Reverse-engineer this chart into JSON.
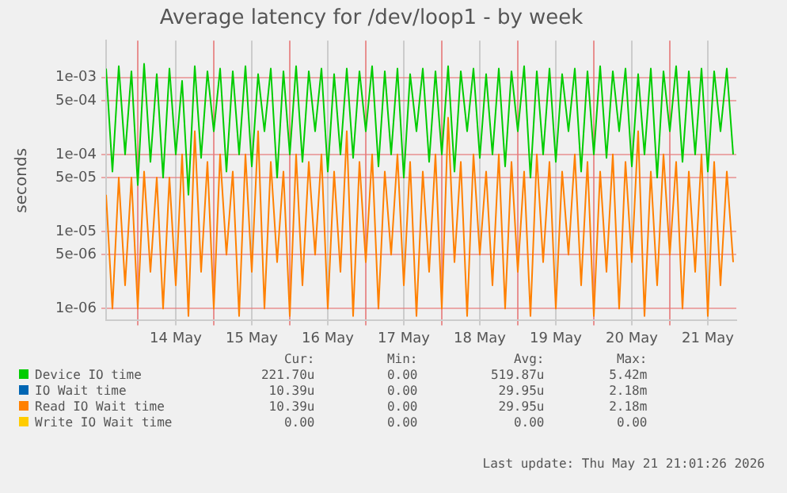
{
  "chart_data": {
    "type": "line",
    "title": "Average latency for /dev/loop1 - by week",
    "ylabel": "seconds",
    "log": "y",
    "grid": true,
    "legend": "bottom",
    "marker": "none",
    "line_style": "solid",
    "xlim": [
      "2026-05-13T14:00",
      "2026-05-21T21:00"
    ],
    "xticks": [
      {
        "value": "2026-05-14T00:00",
        "label": null
      },
      {
        "value": "2026-05-14T12:00",
        "label": "14 May"
      },
      {
        "value": "2026-05-15T00:00",
        "label": null
      },
      {
        "value": "2026-05-15T12:00",
        "label": "15 May"
      },
      {
        "value": "2026-05-16T00:00",
        "label": null
      },
      {
        "value": "2026-05-16T12:00",
        "label": "16 May"
      },
      {
        "value": "2026-05-17T00:00",
        "label": null
      },
      {
        "value": "2026-05-17T12:00",
        "label": "17 May"
      },
      {
        "value": "2026-05-18T00:00",
        "label": null
      },
      {
        "value": "2026-05-18T12:00",
        "label": "18 May"
      },
      {
        "value": "2026-05-19T00:00",
        "label": null
      },
      {
        "value": "2026-05-19T12:00",
        "label": "19 May"
      },
      {
        "value": "2026-05-20T00:00",
        "label": null
      },
      {
        "value": "2026-05-20T12:00",
        "label": "20 May"
      },
      {
        "value": "2026-05-21T00:00",
        "label": null
      },
      {
        "value": "2026-05-21T12:00",
        "label": "21 May"
      }
    ],
    "ylim": [
      7e-07,
      0.003
    ],
    "yticks": [
      {
        "value": 1e-06,
        "label": "1e-06"
      },
      {
        "value": 5e-06,
        "label": "5e-06"
      },
      {
        "value": 1e-05,
        "label": "1e-05"
      },
      {
        "value": 5e-05,
        "label": "5e-05"
      },
      {
        "value": 0.0001,
        "label": "1e-04"
      },
      {
        "value": 0.0005,
        "label": "5e-04"
      },
      {
        "value": 0.001,
        "label": "1e-03"
      }
    ],
    "x": [
      "2026-05-13T14:00",
      "2026-05-13T16:00",
      "2026-05-13T18:00",
      "2026-05-13T20:00",
      "2026-05-13T22:00",
      "2026-05-14T00:00",
      "2026-05-14T02:00",
      "2026-05-14T04:00",
      "2026-05-14T06:00",
      "2026-05-14T08:00",
      "2026-05-14T10:00",
      "2026-05-14T12:00",
      "2026-05-14T14:00",
      "2026-05-14T16:00",
      "2026-05-14T18:00",
      "2026-05-14T20:00",
      "2026-05-14T22:00",
      "2026-05-15T00:00",
      "2026-05-15T02:00",
      "2026-05-15T04:00",
      "2026-05-15T06:00",
      "2026-05-15T08:00",
      "2026-05-15T10:00",
      "2026-05-15T12:00",
      "2026-05-15T14:00",
      "2026-05-15T16:00",
      "2026-05-15T18:00",
      "2026-05-15T20:00",
      "2026-05-15T22:00",
      "2026-05-16T00:00",
      "2026-05-16T02:00",
      "2026-05-16T04:00",
      "2026-05-16T06:00",
      "2026-05-16T08:00",
      "2026-05-16T10:00",
      "2026-05-16T12:00",
      "2026-05-16T14:00",
      "2026-05-16T16:00",
      "2026-05-16T18:00",
      "2026-05-16T20:00",
      "2026-05-16T22:00",
      "2026-05-17T00:00",
      "2026-05-17T02:00",
      "2026-05-17T04:00",
      "2026-05-17T06:00",
      "2026-05-17T08:00",
      "2026-05-17T10:00",
      "2026-05-17T12:00",
      "2026-05-17T14:00",
      "2026-05-17T16:00",
      "2026-05-17T18:00",
      "2026-05-17T20:00",
      "2026-05-17T22:00",
      "2026-05-18T00:00",
      "2026-05-18T02:00",
      "2026-05-18T04:00",
      "2026-05-18T06:00",
      "2026-05-18T08:00",
      "2026-05-18T10:00",
      "2026-05-18T12:00",
      "2026-05-18T14:00",
      "2026-05-18T16:00",
      "2026-05-18T18:00",
      "2026-05-18T20:00",
      "2026-05-18T22:00",
      "2026-05-19T00:00",
      "2026-05-19T02:00",
      "2026-05-19T04:00",
      "2026-05-19T06:00",
      "2026-05-19T08:00",
      "2026-05-19T10:00",
      "2026-05-19T12:00",
      "2026-05-19T14:00",
      "2026-05-19T16:00",
      "2026-05-19T18:00",
      "2026-05-19T20:00",
      "2026-05-19T22:00",
      "2026-05-20T00:00",
      "2026-05-20T02:00",
      "2026-05-20T04:00",
      "2026-05-20T06:00",
      "2026-05-20T08:00",
      "2026-05-20T10:00",
      "2026-05-20T12:00",
      "2026-05-20T14:00",
      "2026-05-20T16:00",
      "2026-05-20T18:00",
      "2026-05-20T20:00",
      "2026-05-20T22:00",
      "2026-05-21T00:00",
      "2026-05-21T02:00",
      "2026-05-21T04:00",
      "2026-05-21T06:00",
      "2026-05-21T08:00",
      "2026-05-21T10:00",
      "2026-05-21T12:00",
      "2026-05-21T14:00",
      "2026-05-21T16:00",
      "2026-05-21T18:00",
      "2026-05-21T20:00"
    ],
    "series": [
      {
        "name": "Device IO time",
        "color": "#00cc00",
        "values": [
          0.0013,
          6e-05,
          0.0014,
          0.0001,
          0.0012,
          4e-05,
          0.0015,
          8e-05,
          0.0011,
          5e-05,
          0.0013,
          0.0001,
          0.0009,
          3e-05,
          0.0014,
          9e-05,
          0.0012,
          0.0002,
          0.0013,
          6e-05,
          0.0012,
          0.0001,
          0.0014,
          7e-05,
          0.0011,
          0.0002,
          0.0013,
          5e-05,
          0.0012,
          0.0001,
          0.0014,
          8e-05,
          0.0012,
          0.0002,
          0.0013,
          6e-05,
          0.0011,
          0.0001,
          0.0013,
          9e-05,
          0.0012,
          0.0002,
          0.0014,
          7e-05,
          0.0012,
          0.0001,
          0.0013,
          5e-05,
          0.0011,
          0.0002,
          0.0013,
          8e-05,
          0.0012,
          0.0001,
          0.0014,
          6e-05,
          0.0012,
          0.0002,
          0.0013,
          9e-05,
          0.0011,
          0.0001,
          0.0013,
          7e-05,
          0.0012,
          0.0002,
          0.0014,
          5e-05,
          0.0012,
          0.0001,
          0.0013,
          8e-05,
          0.0011,
          0.0002,
          0.0013,
          6e-05,
          0.0012,
          0.0001,
          0.0014,
          9e-05,
          0.0012,
          0.0002,
          0.0013,
          7e-05,
          0.0011,
          0.0001,
          0.0013,
          5e-05,
          0.0012,
          0.0002,
          0.0014,
          8e-05,
          0.0012,
          0.0001,
          0.0013,
          6e-05,
          0.0012,
          0.0002,
          0.0013,
          0.0001
        ]
      },
      {
        "name": "IO Wait time",
        "color": "#0066b3",
        "values": [
          null,
          null,
          null,
          null,
          null,
          null,
          null,
          null,
          null,
          null,
          null,
          null,
          null,
          null,
          null,
          null,
          null,
          null,
          null,
          null,
          null,
          null,
          null,
          null,
          null,
          null,
          null,
          null,
          null,
          null,
          null,
          null,
          null,
          null,
          null,
          null,
          null,
          null,
          null,
          null,
          null,
          null,
          null,
          null,
          null,
          null,
          null,
          null,
          null,
          null,
          null,
          null,
          null,
          null,
          null,
          null,
          null,
          null,
          null,
          null,
          null,
          null,
          null,
          null,
          null,
          null,
          null,
          null,
          null,
          null,
          null,
          null,
          null,
          null,
          null,
          null,
          null,
          null,
          null,
          null,
          null,
          null,
          null,
          null,
          null,
          null,
          null,
          null,
          null,
          null,
          null,
          null,
          null,
          null,
          null,
          null,
          null,
          null,
          null,
          null
        ]
      },
      {
        "name": "Read IO Wait time",
        "color": "#ff8000",
        "values": [
          3e-05,
          1e-06,
          5e-05,
          2e-06,
          5e-05,
          1e-06,
          6e-05,
          3e-06,
          5e-05,
          1e-06,
          5e-05,
          2e-06,
          0.0001,
          8e-07,
          0.0002,
          3e-06,
          8e-05,
          1e-06,
          0.0001,
          5e-06,
          6e-05,
          8e-07,
          0.0001,
          3e-06,
          0.0002,
          1e-06,
          8e-05,
          4e-06,
          6e-05,
          8e-07,
          0.0001,
          2e-06,
          8e-05,
          5e-06,
          0.0001,
          1e-06,
          6e-05,
          3e-06,
          0.0002,
          8e-07,
          8e-05,
          4e-06,
          0.0001,
          1e-06,
          6e-05,
          5e-06,
          0.0001,
          2e-06,
          8e-05,
          8e-07,
          6e-05,
          3e-06,
          0.0001,
          1e-06,
          0.0003,
          4e-06,
          8e-05,
          8e-07,
          0.0001,
          5e-06,
          6e-05,
          2e-06,
          0.0001,
          1e-06,
          8e-05,
          3e-06,
          6e-05,
          8e-07,
          0.0001,
          4e-06,
          8e-05,
          1e-06,
          6e-05,
          5e-06,
          0.0001,
          2e-06,
          8e-05,
          8e-07,
          6e-05,
          3e-06,
          0.0001,
          1e-06,
          8e-05,
          4e-06,
          0.0002,
          8e-07,
          6e-05,
          2e-06,
          0.0001,
          5e-06,
          8e-05,
          1e-06,
          6e-05,
          3e-06,
          0.0001,
          8e-07,
          8e-05,
          2e-06,
          6e-05,
          4e-06
        ]
      },
      {
        "name": "Write IO Wait time",
        "color": "#ffcc00",
        "values": [
          null,
          null,
          null,
          null,
          null,
          null,
          null,
          null,
          null,
          null,
          null,
          null,
          null,
          null,
          null,
          null,
          null,
          null,
          null,
          null,
          null,
          null,
          null,
          null,
          null,
          null,
          null,
          null,
          null,
          null,
          null,
          null,
          null,
          null,
          null,
          null,
          null,
          null,
          null,
          null,
          null,
          null,
          null,
          null,
          null,
          null,
          null,
          null,
          null,
          null,
          null,
          null,
          null,
          null,
          null,
          null,
          null,
          null,
          null,
          null,
          null,
          null,
          null,
          null,
          null,
          null,
          null,
          null,
          null,
          null,
          null,
          null,
          null,
          null,
          null,
          null,
          null,
          null,
          null,
          null,
          null,
          null,
          null,
          null,
          null,
          null,
          null,
          null,
          null,
          null,
          null,
          null,
          null,
          null,
          null,
          null,
          null,
          null,
          null,
          null
        ]
      }
    ],
    "annotations": [
      "Cur:",
      "Min:",
      "Avg:",
      "Max:",
      "221.70u",
      "0.00",
      "519.87u",
      "5.42m",
      "10.39u",
      "0.00",
      "29.95u",
      "2.18m",
      "10.39u",
      "0.00",
      "29.95u",
      "2.18m",
      "0.00",
      "0.00",
      "0.00",
      "0.00",
      "Last update: Thu May 21 21:01:26 2026"
    ]
  }
}
